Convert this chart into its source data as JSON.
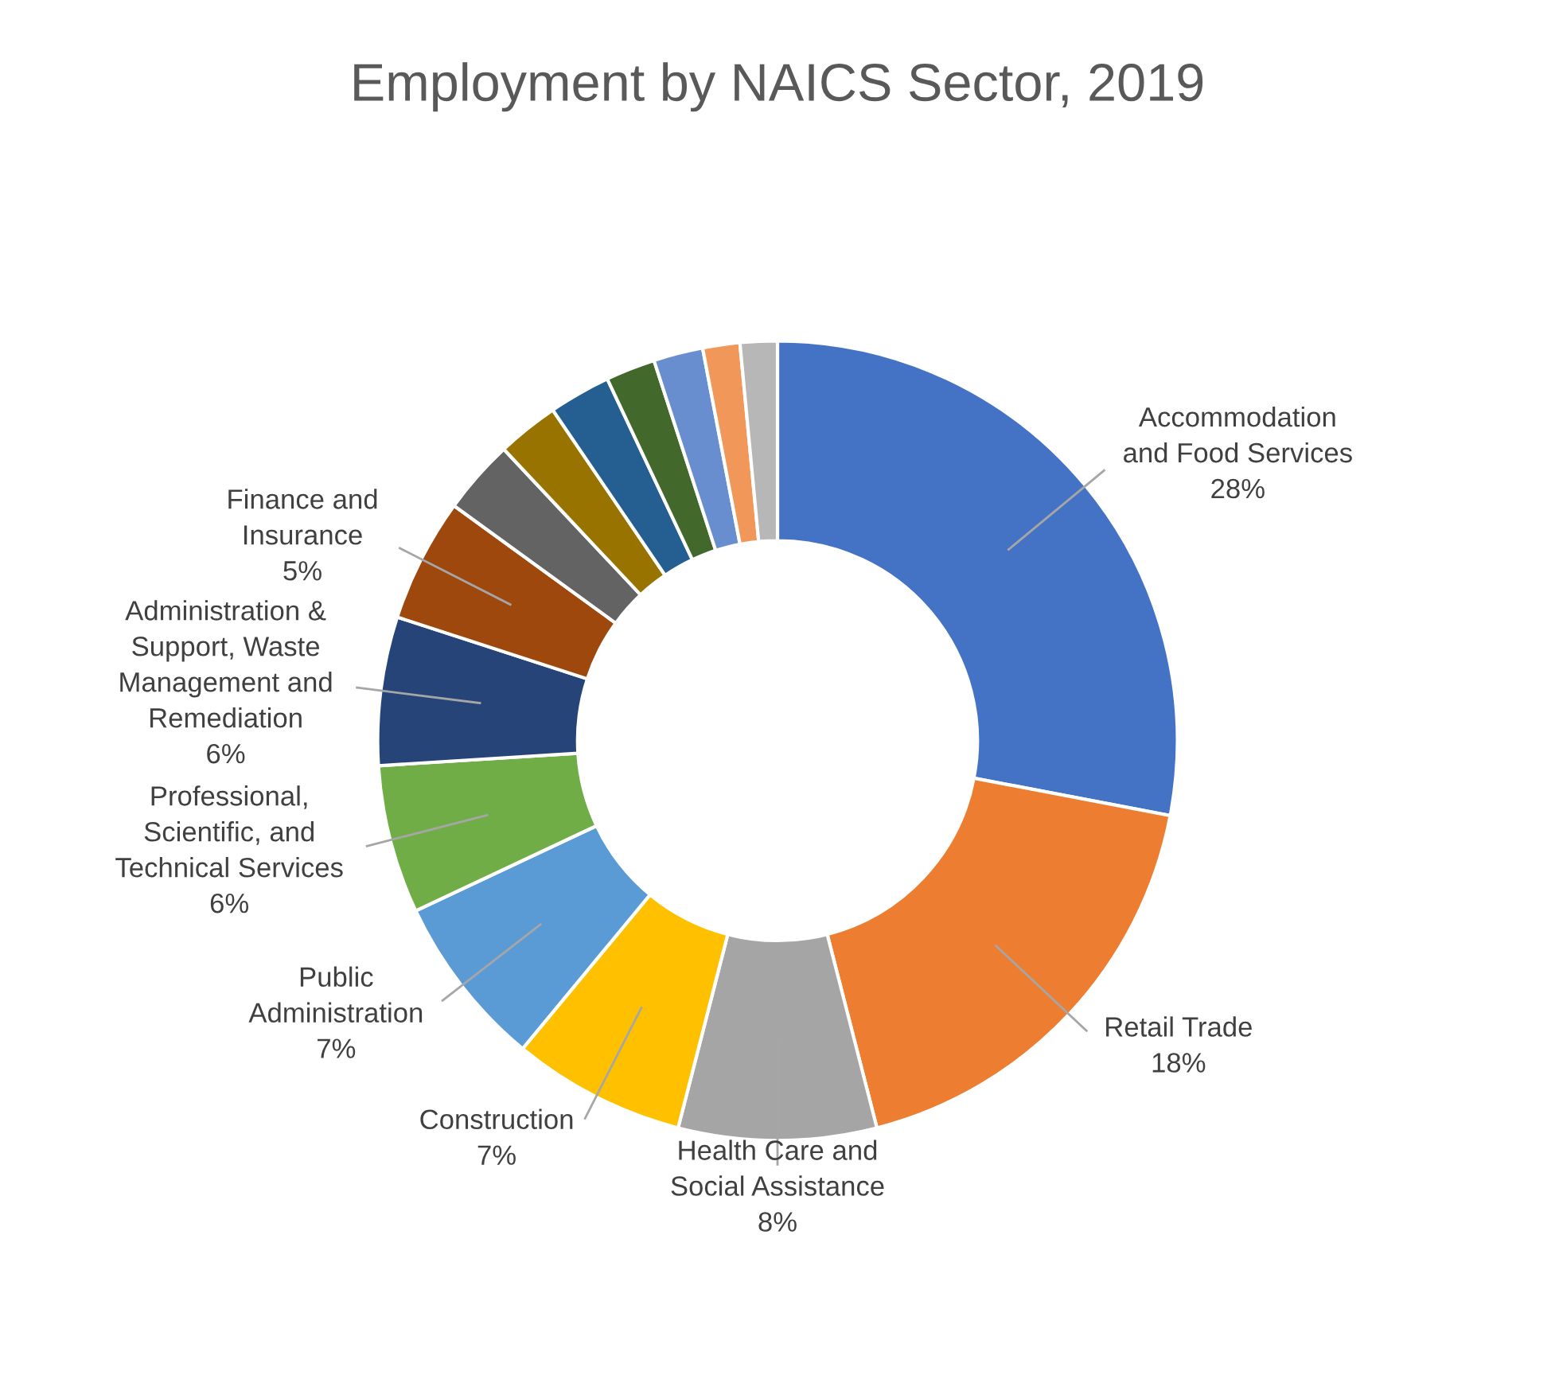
{
  "chart_data": {
    "type": "donut",
    "title": "Employment by NAICS Sector, 2019",
    "categories": [
      "Accommodation\nand Food Services",
      "Retail Trade",
      "Health Care and\nSocial Assistance",
      "Construction",
      "Public\nAdministration",
      "Professional,\nScientific, and\nTechnical Services",
      "Administration &\nSupport, Waste\nManagement and\nRemediation",
      "Finance and\nInsurance",
      null,
      null,
      null,
      null,
      null,
      null,
      null
    ],
    "values": [
      28,
      18,
      8,
      7,
      7,
      6,
      6,
      5,
      3,
      2.5,
      2.5,
      2,
      2,
      1.5,
      1.5
    ],
    "value_labels": [
      "28%",
      "18%",
      "8%",
      "7%",
      "7%",
      "6%",
      "6%",
      "5%",
      null,
      null,
      null,
      null,
      null,
      null,
      null
    ],
    "colors": [
      "#4472c4",
      "#ed7d31",
      "#a5a5a5",
      "#ffc000",
      "#5b9bd5",
      "#70ad47",
      "#264478",
      "#9e480e",
      "#636363",
      "#997300",
      "#255e91",
      "#43682b",
      "#698ed0",
      "#f1975a",
      "#b7b7b7"
    ],
    "legend": false
  }
}
